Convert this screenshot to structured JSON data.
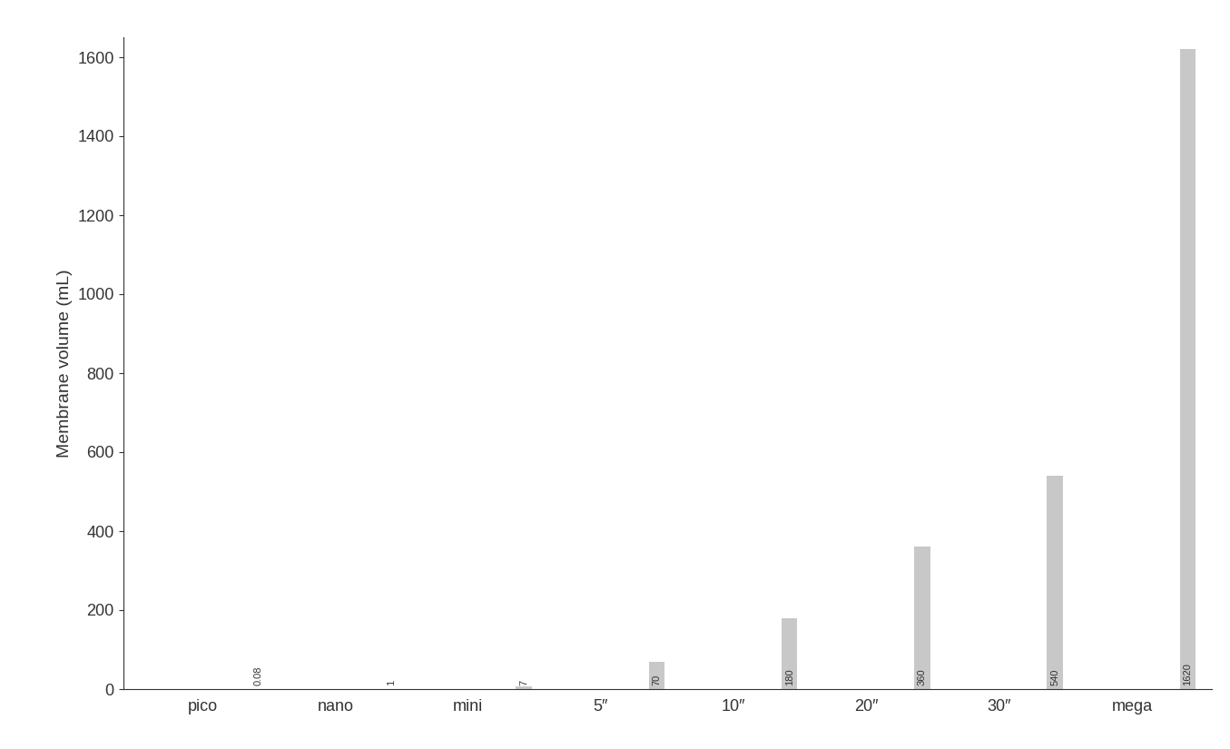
{
  "chart_data": {
    "type": "bar",
    "y_label": "Membrane volume (mL)",
    "categories": [
      "pico",
      "nano",
      "mini",
      "5″",
      "10″",
      "20″",
      "30″",
      "mega"
    ],
    "values": [
      0.08,
      1,
      7,
      70,
      180,
      360,
      540,
      1620
    ],
    "color": "#c8c8c8",
    "ylim": [
      0,
      1650
    ],
    "yticks": [
      0,
      200,
      400,
      600,
      800,
      1000,
      1200,
      1400,
      1600
    ],
    "grid": false,
    "data_labels": true
  }
}
